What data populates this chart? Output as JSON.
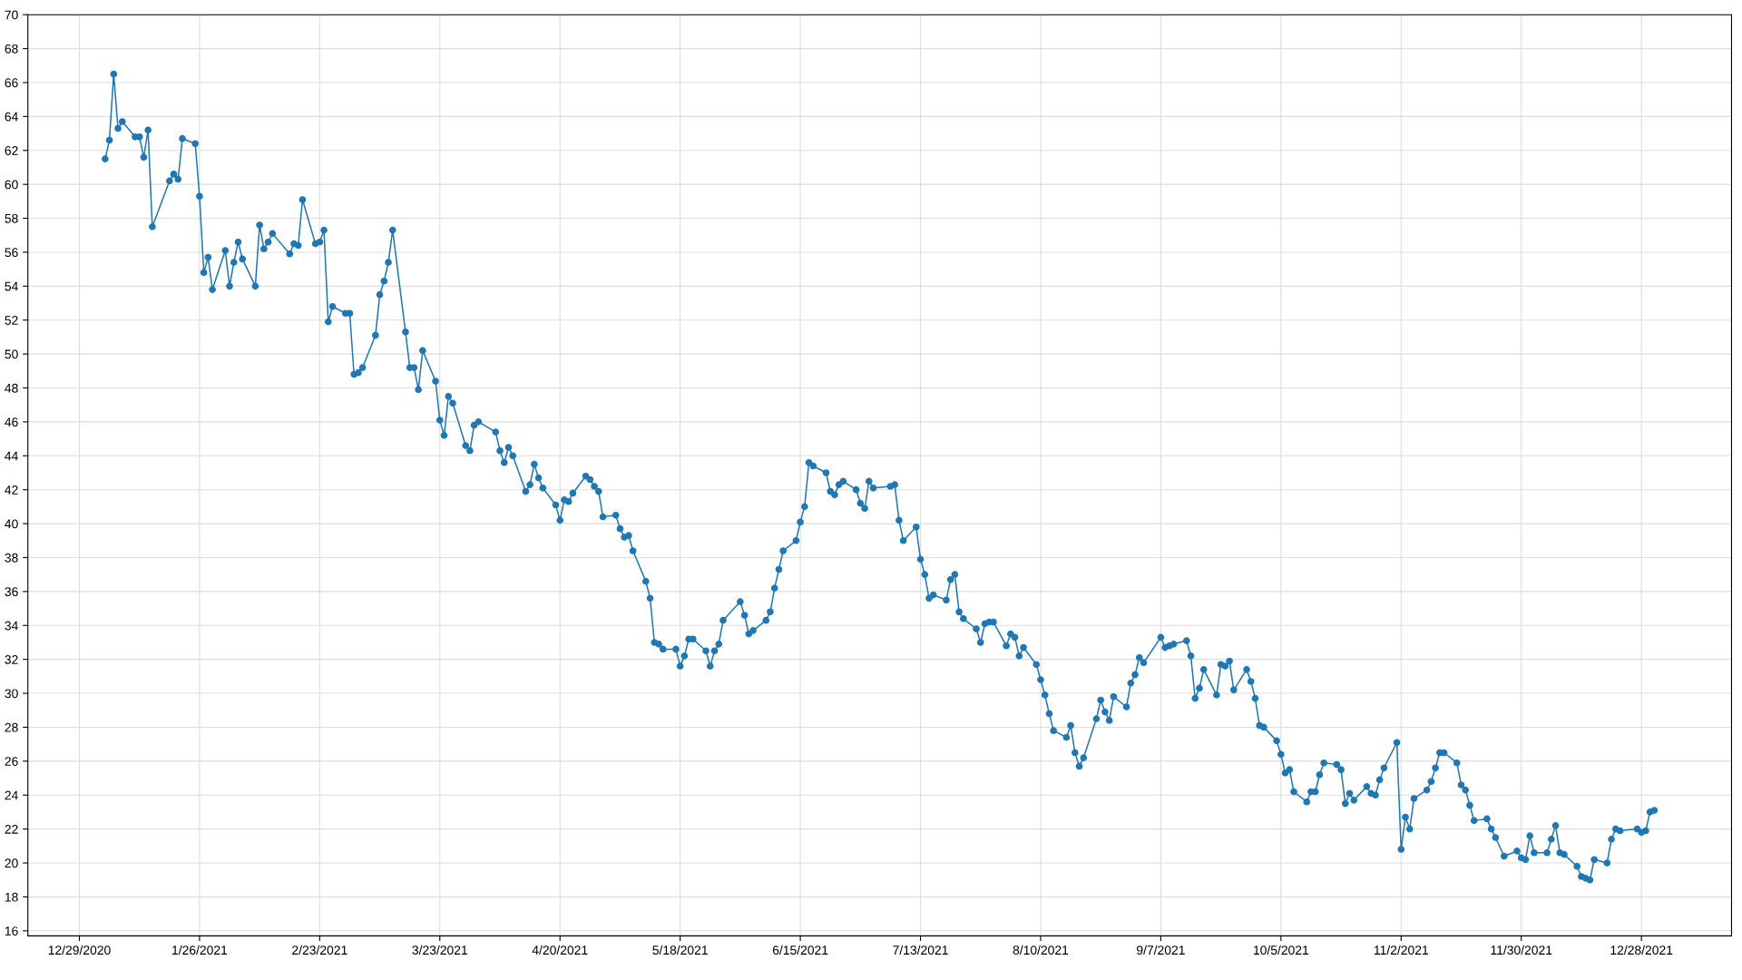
{
  "chart_data": {
    "type": "line",
    "marker": "circle",
    "line_style": "solid",
    "grid": true,
    "legend": false,
    "x": [
      "2021-01-04",
      "2021-01-05",
      "2021-01-06",
      "2021-01-07",
      "2021-01-08",
      "2021-01-11",
      "2021-01-12",
      "2021-01-13",
      "2021-01-14",
      "2021-01-15",
      "2021-01-19",
      "2021-01-20",
      "2021-01-21",
      "2021-01-22",
      "2021-01-25",
      "2021-01-26",
      "2021-01-27",
      "2021-01-28",
      "2021-01-29",
      "2021-02-01",
      "2021-02-02",
      "2021-02-03",
      "2021-02-04",
      "2021-02-05",
      "2021-02-08",
      "2021-02-09",
      "2021-02-10",
      "2021-02-11",
      "2021-02-12",
      "2021-02-16",
      "2021-02-17",
      "2021-02-18",
      "2021-02-19",
      "2021-02-22",
      "2021-02-23",
      "2021-02-24",
      "2021-02-25",
      "2021-02-26",
      "2021-03-01",
      "2021-03-02",
      "2021-03-03",
      "2021-03-04",
      "2021-03-05",
      "2021-03-08",
      "2021-03-09",
      "2021-03-10",
      "2021-03-11",
      "2021-03-12",
      "2021-03-15",
      "2021-03-16",
      "2021-03-17",
      "2021-03-18",
      "2021-03-19",
      "2021-03-22",
      "2021-03-23",
      "2021-03-24",
      "2021-03-25",
      "2021-03-26",
      "2021-03-29",
      "2021-03-30",
      "2021-03-31",
      "2021-04-01",
      "2021-04-05",
      "2021-04-06",
      "2021-04-07",
      "2021-04-08",
      "2021-04-09",
      "2021-04-12",
      "2021-04-13",
      "2021-04-14",
      "2021-04-15",
      "2021-04-16",
      "2021-04-19",
      "2021-04-20",
      "2021-04-21",
      "2021-04-22",
      "2021-04-23",
      "2021-04-26",
      "2021-04-27",
      "2021-04-28",
      "2021-04-29",
      "2021-04-30",
      "2021-05-03",
      "2021-05-04",
      "2021-05-05",
      "2021-05-06",
      "2021-05-07",
      "2021-05-10",
      "2021-05-11",
      "2021-05-12",
      "2021-05-13",
      "2021-05-14",
      "2021-05-17",
      "2021-05-18",
      "2021-05-19",
      "2021-05-20",
      "2021-05-21",
      "2021-05-24",
      "2021-05-25",
      "2021-05-26",
      "2021-05-27",
      "2021-05-28",
      "2021-06-01",
      "2021-06-02",
      "2021-06-03",
      "2021-06-04",
      "2021-06-07",
      "2021-06-08",
      "2021-06-09",
      "2021-06-10",
      "2021-06-11",
      "2021-06-14",
      "2021-06-15",
      "2021-06-16",
      "2021-06-17",
      "2021-06-18",
      "2021-06-21",
      "2021-06-22",
      "2021-06-23",
      "2021-06-24",
      "2021-06-25",
      "2021-06-28",
      "2021-06-29",
      "2021-06-30",
      "2021-07-01",
      "2021-07-02",
      "2021-07-06",
      "2021-07-07",
      "2021-07-08",
      "2021-07-09",
      "2021-07-12",
      "2021-07-13",
      "2021-07-14",
      "2021-07-15",
      "2021-07-16",
      "2021-07-19",
      "2021-07-20",
      "2021-07-21",
      "2021-07-22",
      "2021-07-23",
      "2021-07-26",
      "2021-07-27",
      "2021-07-28",
      "2021-07-29",
      "2021-07-30",
      "2021-08-02",
      "2021-08-03",
      "2021-08-04",
      "2021-08-05",
      "2021-08-06",
      "2021-08-09",
      "2021-08-10",
      "2021-08-11",
      "2021-08-12",
      "2021-08-13",
      "2021-08-16",
      "2021-08-17",
      "2021-08-18",
      "2021-08-19",
      "2021-08-20",
      "2021-08-23",
      "2021-08-24",
      "2021-08-25",
      "2021-08-26",
      "2021-08-27",
      "2021-08-30",
      "2021-08-31",
      "2021-09-01",
      "2021-09-02",
      "2021-09-03",
      "2021-09-07",
      "2021-09-08",
      "2021-09-09",
      "2021-09-10",
      "2021-09-13",
      "2021-09-14",
      "2021-09-15",
      "2021-09-16",
      "2021-09-17",
      "2021-09-20",
      "2021-09-21",
      "2021-09-22",
      "2021-09-23",
      "2021-09-24",
      "2021-09-27",
      "2021-09-28",
      "2021-09-29",
      "2021-09-30",
      "2021-10-01",
      "2021-10-04",
      "2021-10-05",
      "2021-10-06",
      "2021-10-07",
      "2021-10-08",
      "2021-10-11",
      "2021-10-12",
      "2021-10-13",
      "2021-10-14",
      "2021-10-15",
      "2021-10-18",
      "2021-10-19",
      "2021-10-20",
      "2021-10-21",
      "2021-10-22",
      "2021-10-25",
      "2021-10-26",
      "2021-10-27",
      "2021-10-28",
      "2021-10-29",
      "2021-11-01",
      "2021-11-02",
      "2021-11-03",
      "2021-11-04",
      "2021-11-05",
      "2021-11-08",
      "2021-11-09",
      "2021-11-10",
      "2021-11-11",
      "2021-11-12",
      "2021-11-15",
      "2021-11-16",
      "2021-11-17",
      "2021-11-18",
      "2021-11-19",
      "2021-11-22",
      "2021-11-23",
      "2021-11-24",
      "2021-11-26",
      "2021-11-29",
      "2021-11-30",
      "2021-12-01",
      "2021-12-02",
      "2021-12-03",
      "2021-12-06",
      "2021-12-07",
      "2021-12-08",
      "2021-12-09",
      "2021-12-10",
      "2021-12-13",
      "2021-12-14",
      "2021-12-15",
      "2021-12-16",
      "2021-12-17",
      "2021-12-20",
      "2021-12-21",
      "2021-12-22",
      "2021-12-23",
      "2021-12-27",
      "2021-12-28",
      "2021-12-29",
      "2021-12-30",
      "2021-12-31"
    ],
    "series": [
      {
        "color": "#1f77b4",
        "values": [
          61.5,
          62.6,
          66.5,
          63.3,
          63.7,
          62.8,
          62.8,
          61.6,
          63.2,
          57.5,
          60.2,
          60.6,
          60.3,
          62.7,
          62.4,
          59.3,
          54.8,
          55.7,
          53.8,
          56.1,
          54.0,
          55.4,
          56.6,
          55.6,
          54.0,
          57.6,
          56.2,
          56.6,
          57.1,
          55.9,
          56.5,
          56.4,
          59.1,
          56.5,
          56.6,
          57.3,
          51.9,
          52.8,
          52.4,
          52.4,
          48.8,
          48.9,
          49.2,
          51.1,
          53.5,
          54.3,
          55.4,
          57.3,
          51.3,
          49.2,
          49.2,
          47.9,
          50.2,
          48.4,
          46.1,
          45.2,
          47.5,
          47.1,
          44.6,
          44.3,
          45.8,
          46.0,
          45.4,
          44.3,
          43.6,
          44.5,
          44.0,
          41.9,
          42.3,
          43.5,
          42.7,
          42.1,
          41.1,
          40.2,
          41.4,
          41.3,
          41.8,
          42.8,
          42.6,
          42.2,
          41.9,
          40.4,
          40.5,
          39.7,
          39.2,
          39.3,
          38.4,
          36.6,
          35.6,
          33.0,
          32.9,
          32.6,
          32.6,
          31.6,
          32.2,
          33.2,
          33.2,
          32.5,
          31.6,
          32.5,
          32.9,
          34.3,
          35.4,
          34.6,
          33.5,
          33.7,
          34.3,
          34.8,
          36.2,
          37.3,
          38.4,
          39.0,
          40.1,
          41.0,
          43.6,
          43.4,
          43.0,
          41.9,
          41.7,
          42.3,
          42.5,
          42.0,
          41.2,
          40.9,
          42.5,
          42.1,
          42.2,
          42.3,
          40.2,
          39.0,
          39.8,
          37.9,
          37.0,
          35.6,
          35.8,
          35.5,
          36.7,
          37.0,
          34.8,
          34.4,
          33.8,
          33.0,
          34.1,
          34.2,
          34.2,
          32.8,
          33.5,
          33.3,
          32.2,
          32.7,
          31.7,
          30.8,
          29.9,
          28.8,
          27.8,
          27.4,
          28.1,
          26.5,
          25.7,
          26.2,
          28.5,
          29.6,
          28.9,
          28.4,
          29.8,
          29.2,
          30.6,
          31.1,
          32.1,
          31.8,
          33.3,
          32.7,
          32.8,
          32.9,
          33.1,
          32.2,
          29.7,
          30.3,
          31.4,
          29.9,
          31.7,
          31.6,
          31.9,
          30.2,
          31.4,
          30.7,
          29.7,
          28.1,
          28.0,
          27.2,
          26.4,
          25.3,
          25.5,
          24.2,
          23.6,
          24.2,
          24.2,
          25.2,
          25.9,
          25.8,
          25.5,
          23.5,
          24.1,
          23.7,
          24.5,
          24.1,
          24.0,
          24.9,
          25.6,
          27.1,
          20.8,
          22.7,
          22.0,
          23.8,
          24.3,
          24.8,
          25.6,
          26.5,
          26.5,
          25.9,
          24.6,
          24.3,
          23.4,
          22.5,
          22.6,
          22.0,
          21.5,
          20.4,
          20.7,
          20.3,
          20.2,
          21.6,
          20.6,
          20.6,
          21.4,
          22.2,
          20.6,
          20.5,
          19.8,
          19.2,
          19.1,
          19.0,
          20.2,
          20.0,
          21.4,
          22.0,
          21.9,
          22.0,
          21.8,
          21.9,
          23.0,
          23.1
        ]
      }
    ],
    "xlim": [
      "2020-12-17",
      "2022-01-18"
    ],
    "xticks": [
      {
        "value": "2020-12-29",
        "label": "12/29/2020"
      },
      {
        "value": "2021-01-26",
        "label": "1/26/2021"
      },
      {
        "value": "2021-02-23",
        "label": "2/23/2021"
      },
      {
        "value": "2021-03-23",
        "label": "3/23/2021"
      },
      {
        "value": "2021-04-20",
        "label": "4/20/2021"
      },
      {
        "value": "2021-05-18",
        "label": "5/18/2021"
      },
      {
        "value": "2021-06-15",
        "label": "6/15/2021"
      },
      {
        "value": "2021-07-13",
        "label": "7/13/2021"
      },
      {
        "value": "2021-08-10",
        "label": "8/10/2021"
      },
      {
        "value": "2021-09-07",
        "label": "9/7/2021"
      },
      {
        "value": "2021-10-05",
        "label": "10/5/2021"
      },
      {
        "value": "2021-11-02",
        "label": "11/2/2021"
      },
      {
        "value": "2021-11-30",
        "label": "11/30/2021"
      },
      {
        "value": "2021-12-28",
        "label": "12/28/2021"
      }
    ],
    "ylim": [
      15.7,
      70
    ],
    "yticks": [
      16,
      18,
      20,
      22,
      24,
      26,
      28,
      30,
      32,
      34,
      36,
      38,
      40,
      42,
      44,
      46,
      48,
      50,
      52,
      54,
      56,
      58,
      60,
      62,
      64,
      66,
      68,
      70
    ]
  }
}
